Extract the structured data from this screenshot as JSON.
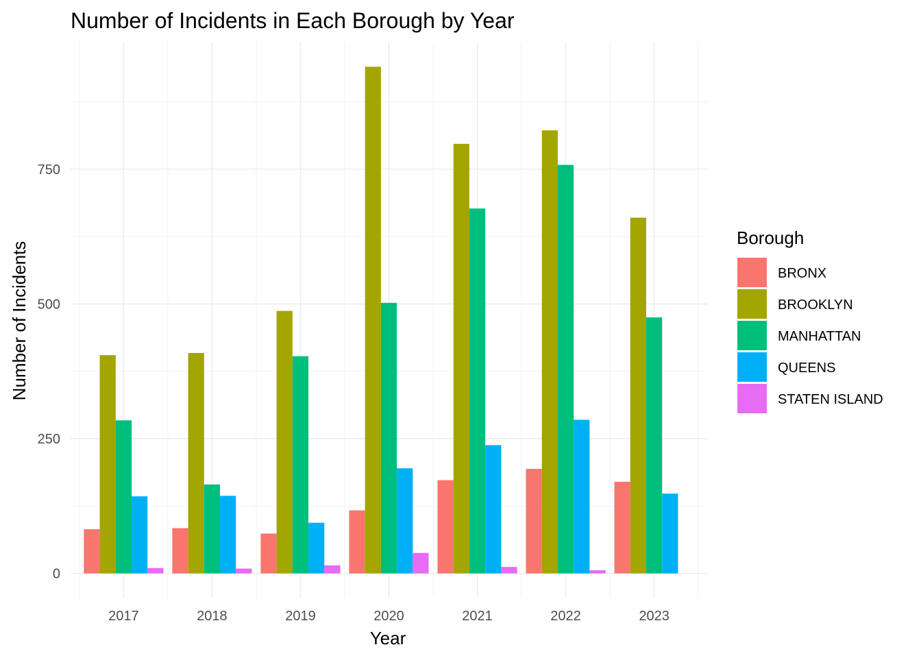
{
  "chart_data": {
    "type": "bar",
    "title": "Number of Incidents in Each Borough by Year",
    "xlabel": "Year",
    "ylabel": "Number of Incidents",
    "categories": [
      "2017",
      "2018",
      "2019",
      "2020",
      "2021",
      "2022",
      "2023"
    ],
    "yticks": [
      0,
      250,
      500,
      750
    ],
    "ylim": [
      -45,
      985
    ],
    "grid": true,
    "legend": {
      "title": "Borough",
      "position": "right"
    },
    "series": [
      {
        "name": "BRONX",
        "color": "#F8766D",
        "values": [
          82,
          84,
          74,
          117,
          173,
          194,
          170
        ]
      },
      {
        "name": "BROOKLYN",
        "color": "#A3A500",
        "values": [
          405,
          409,
          487,
          940,
          797,
          822,
          660
        ]
      },
      {
        "name": "MANHATTAN",
        "color": "#00BF7D",
        "values": [
          284,
          165,
          403,
          502,
          677,
          758,
          475
        ]
      },
      {
        "name": "QUEENS",
        "color": "#00B0F6",
        "values": [
          143,
          144,
          94,
          195,
          238,
          285,
          148
        ]
      },
      {
        "name": "STATEN ISLAND",
        "color": "#E76BF3",
        "values": [
          10,
          9,
          15,
          38,
          12,
          6,
          0
        ]
      }
    ]
  }
}
